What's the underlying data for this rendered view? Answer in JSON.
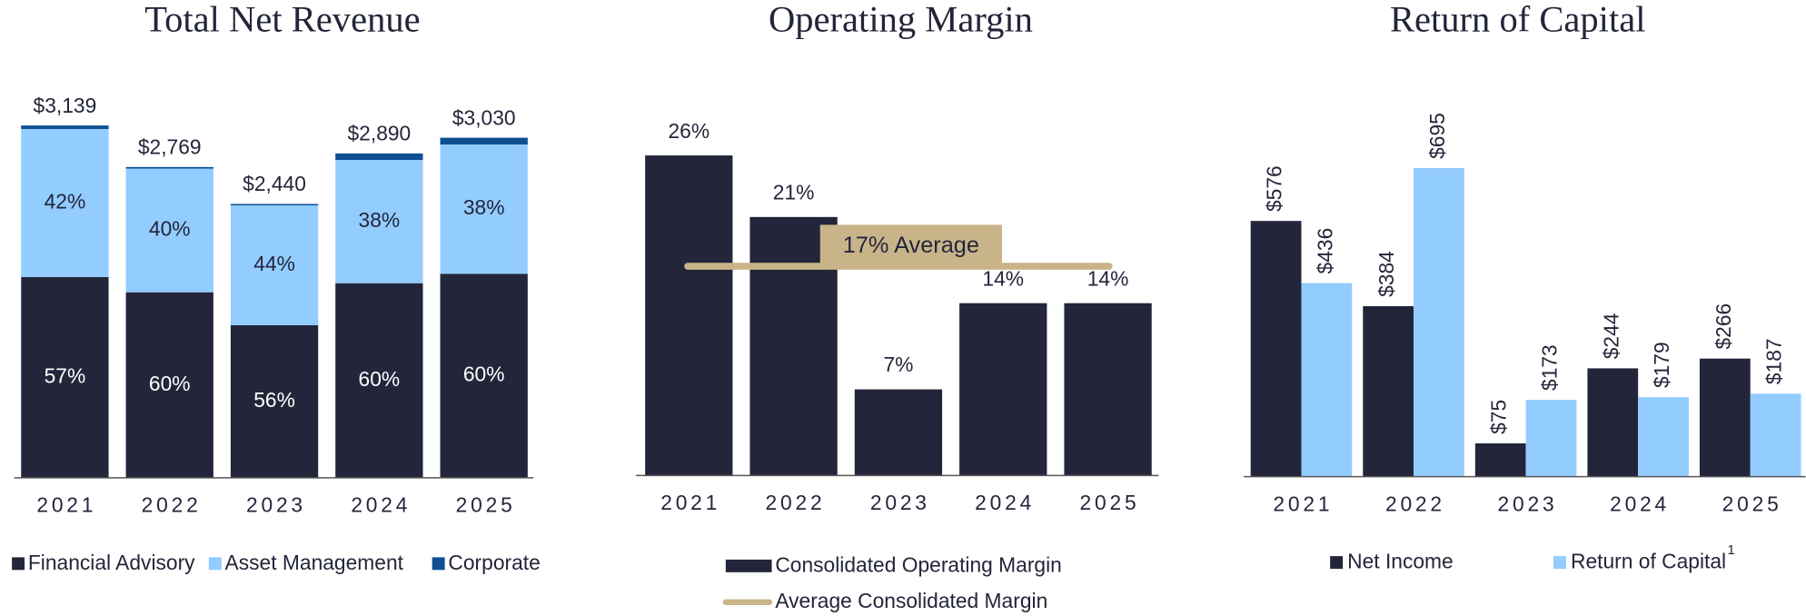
{
  "chart_data": [
    {
      "type": "stacked_bar",
      "title": "Total Net Revenue",
      "categories": [
        "2021",
        "2022",
        "2023",
        "2024",
        "2025"
      ],
      "totals": {
        "values": [
          3139,
          2769,
          2440,
          2890,
          3030
        ],
        "value_labels": [
          "$3,139",
          "$2,769",
          "$2,440",
          "$2,890",
          "$3,030"
        ]
      },
      "series": [
        {
          "name": "Financial Advisory",
          "color": "#23263a",
          "values": [
            57,
            60,
            56,
            60,
            60
          ],
          "value_labels": [
            "57%",
            "60%",
            "56%",
            "60%",
            "60%"
          ]
        },
        {
          "name": "Asset Management",
          "color": "#93ccff",
          "values": [
            42,
            40,
            44,
            38,
            38
          ],
          "value_labels": [
            "42%",
            "40%",
            "44%",
            "38%",
            "38%"
          ]
        },
        {
          "name": "Corporate",
          "color": "#0d4f92",
          "values": [
            1,
            0.5,
            0.5,
            2,
            2
          ]
        }
      ]
    },
    {
      "type": "bar",
      "title": "Operating Margin",
      "categories": [
        "2021",
        "2022",
        "2023",
        "2024",
        "2025"
      ],
      "series": [
        {
          "name": "Consolidated Operating Margin",
          "color": "#23263a",
          "values": [
            26,
            21,
            7,
            14,
            14
          ],
          "value_labels": [
            "26%",
            "21%",
            "7%",
            "14%",
            "14%"
          ]
        }
      ],
      "average": {
        "name": "Average Consolidated Margin",
        "color": "#c9b48a",
        "value": 17,
        "label": "17% Average"
      }
    },
    {
      "type": "grouped_bar",
      "title": "Return of Capital",
      "categories": [
        "2021",
        "2022",
        "2023",
        "2024",
        "2025"
      ],
      "series": [
        {
          "name": "Net Income",
          "color": "#23263a",
          "values": [
            576,
            384,
            75,
            244,
            266
          ],
          "value_labels": [
            "$576",
            "$384",
            "$75",
            "$244",
            "$266"
          ]
        },
        {
          "name": "Return of Capital",
          "footnote": "1",
          "color": "#93ccff",
          "values": [
            436,
            695,
            173,
            179,
            187
          ],
          "value_labels": [
            "$436",
            "$695",
            "$173",
            "$179",
            "$187"
          ]
        }
      ]
    }
  ]
}
